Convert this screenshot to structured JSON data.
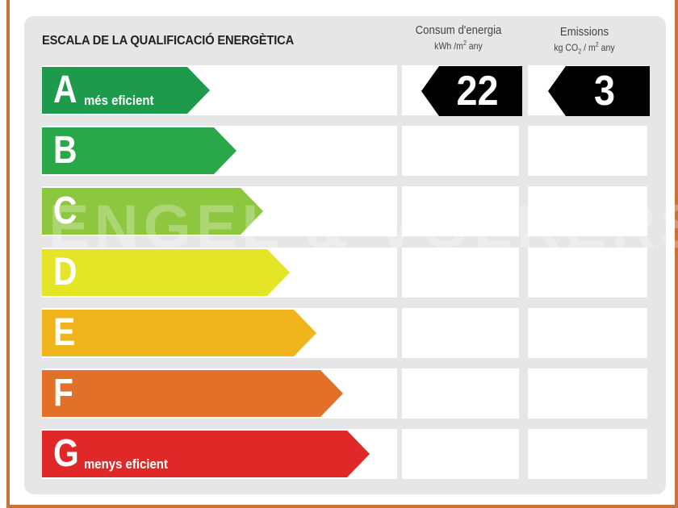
{
  "title": "ESCALA DE LA QUALIFICACIÓ ENERGÈTICA",
  "columns": {
    "energy": {
      "label": "Consum d'energia",
      "unit_prefix": "kWh /m",
      "unit_sup": "2",
      "unit_suffix": " any"
    },
    "emissions": {
      "label": "Emissions",
      "unit_prefix": "kg CO",
      "unit_sub": "2",
      "unit_mid": " / m",
      "unit_sup": "2",
      "unit_suffix": " any"
    }
  },
  "ratings": [
    {
      "letter": "A",
      "sublabel": "més eficient",
      "color": "#1d9a4c"
    },
    {
      "letter": "B",
      "sublabel": "",
      "color": "#2aa748"
    },
    {
      "letter": "C",
      "sublabel": "",
      "color": "#8dc63f"
    },
    {
      "letter": "D",
      "sublabel": "",
      "color": "#e5e528"
    },
    {
      "letter": "E",
      "sublabel": "",
      "color": "#f0b41c"
    },
    {
      "letter": "F",
      "sublabel": "",
      "color": "#e27029"
    },
    {
      "letter": "G",
      "sublabel": "menys eficient",
      "color": "#e02828"
    }
  ],
  "current": {
    "rating": "A",
    "energy_value": "22",
    "emissions_value": "3"
  },
  "watermark": "ENGEL & VÖLKERS"
}
